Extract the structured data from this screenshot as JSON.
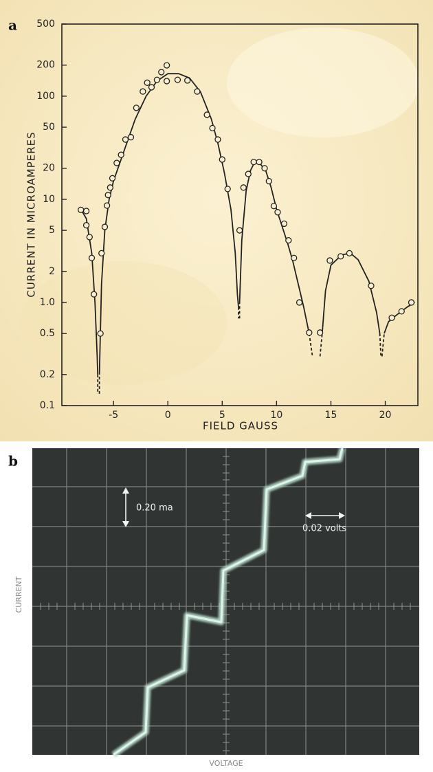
{
  "chart_data": {
    "type": "scatter",
    "panel_label": "a",
    "x_label": "FIELD GAUSS",
    "y_label": "CURRENT IN MICROAMPERES",
    "xlim": [
      -9.75,
      23
    ],
    "ylim": [
      0.1,
      500
    ],
    "log_y": true,
    "xticks": [
      -5,
      0,
      5,
      10,
      15,
      20
    ],
    "yticks": [
      0.1,
      0.2,
      0.5,
      {
        "value": 1,
        "label": "1.0"
      },
      2,
      5,
      10,
      20,
      50,
      100,
      200,
      500
    ],
    "series": [
      {
        "type": "scatter",
        "color": "#222222",
        "x": [
          -8.0,
          -7.5,
          -7.5,
          -7.2,
          -7.0,
          -6.8,
          -6.2,
          -6.1,
          -5.8,
          -5.6,
          -5.5,
          -5.3,
          -5.1,
          -4.7,
          -4.3,
          -3.9,
          -3.4,
          -2.9,
          -2.3,
          -1.9,
          -1.5,
          -1.0,
          -0.6,
          -0.1,
          -0.1,
          0.9,
          1.8,
          2.7,
          3.6,
          4.1,
          4.6,
          5.0,
          5.5,
          6.6,
          6.96,
          7.4,
          7.9,
          8.4,
          8.9,
          9.3,
          9.75,
          10.1,
          10.7,
          11.1,
          11.6,
          12.1,
          13.0,
          14.0,
          14.9,
          15.9,
          16.7,
          18.7,
          20.6,
          21.5,
          22.4
        ],
        "values": [
          7.9,
          7.7,
          5.6,
          4.3,
          2.7,
          1.2,
          0.5,
          3.0,
          5.4,
          8.7,
          11,
          13,
          16,
          22.5,
          27,
          38,
          40,
          77,
          111,
          135,
          122,
          144,
          171,
          199,
          140,
          144,
          142,
          111,
          66,
          49,
          38,
          24.3,
          12.6,
          5.0,
          13,
          17.6,
          23,
          23,
          20,
          15,
          8.6,
          7.5,
          5.8,
          4.0,
          2.7,
          1.0,
          0.51,
          0.51,
          2.55,
          2.8,
          3.0,
          1.45,
          0.71,
          0.82,
          1.0
        ]
      },
      {
        "type": "line",
        "color": "#222222",
        "dash": false,
        "x": [
          -8.0,
          -7.5,
          -7.0,
          -6.7,
          -6.5,
          -6.45,
          null,
          -6.3,
          -6.1,
          -5.8,
          -5.4,
          -5,
          -4,
          -3,
          -2,
          -1,
          0,
          1,
          2,
          3,
          4,
          4.6,
          5.2,
          5.8,
          6.2,
          6.4,
          6.5,
          null,
          6.6,
          6.8,
          7.2,
          7.6,
          8.0,
          8.5,
          9,
          9.5,
          10,
          10.5,
          11,
          11.5,
          12,
          12.5,
          13.0,
          null,
          14.2,
          14.5,
          15,
          16,
          16.8,
          17.5,
          18.5,
          19.2,
          19.5,
          null,
          19.9,
          20.3,
          21,
          22,
          22.7
        ],
        "values": [
          8.0,
          6.5,
          3.0,
          1.0,
          0.3,
          0.2,
          null,
          0.2,
          1.5,
          5,
          10,
          15,
          30,
          60,
          100,
          140,
          165,
          165,
          150,
          110,
          60,
          35,
          18,
          8,
          3,
          1.2,
          0.9,
          null,
          1.0,
          4,
          12,
          19,
          23,
          22,
          19,
          13,
          8,
          5.5,
          3.8,
          2.5,
          1.5,
          0.9,
          0.5,
          null,
          0.5,
          1.3,
          2.3,
          2.9,
          3.0,
          2.6,
          1.6,
          0.8,
          0.5,
          null,
          0.5,
          0.65,
          0.75,
          0.9,
          1.0
        ]
      },
      {
        "type": "line",
        "color": "#222222",
        "dash": true,
        "x": [
          -6.45,
          -6.45,
          null,
          -6.3,
          -6.3,
          null,
          6.5,
          6.5,
          null,
          6.6,
          6.6,
          null,
          13.0,
          13.3,
          null,
          14.0,
          14.2,
          null,
          19.5,
          19.6,
          null,
          19.7,
          19.9
        ],
        "values": [
          0.2,
          0.13,
          null,
          0.13,
          0.2,
          null,
          0.9,
          0.7,
          null,
          0.7,
          1.0,
          null,
          0.5,
          0.3,
          null,
          0.3,
          0.5,
          null,
          0.5,
          0.3,
          null,
          0.3,
          0.5
        ]
      }
    ]
  },
  "panel_b": {
    "label": "b",
    "x_label": "VOLTAGE",
    "y_label": "CURRENT",
    "current_scale": "0.20 ma",
    "voltage_scale": "0.02 volts"
  }
}
